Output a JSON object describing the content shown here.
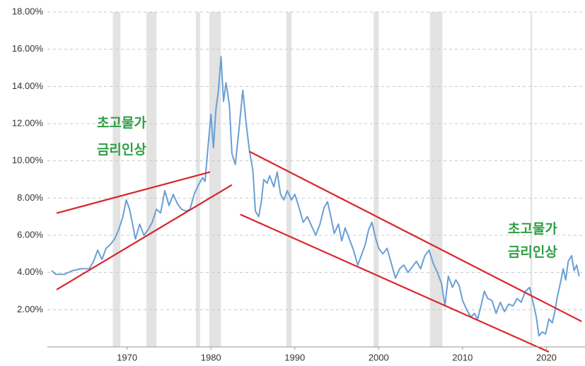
{
  "chart_data": {
    "type": "line",
    "xlim": [
      1960.5,
      2024.6
    ],
    "xticks": [
      1970,
      1980,
      1990,
      2000,
      2010,
      2020
    ],
    "ylim": [
      0,
      18
    ],
    "yticks": [
      {
        "value": 0,
        "label": ""
      },
      {
        "value": 2,
        "label": "2.00%"
      },
      {
        "value": 4,
        "label": "4.00%"
      },
      {
        "value": 6,
        "label": "6.00%"
      },
      {
        "value": 8,
        "label": "8.00%"
      },
      {
        "value": 10,
        "label": "10.00%"
      },
      {
        "value": 12,
        "label": "12.00%"
      },
      {
        "value": 14,
        "label": "14.00%"
      },
      {
        "value": 16,
        "label": "16.00%"
      },
      {
        "value": 18,
        "label": "18.00%"
      }
    ],
    "grid": true,
    "shaded_ranges": [
      [
        1968.3,
        1969.2
      ],
      [
        1972.3,
        1973.5
      ],
      [
        1978.2,
        1978.7
      ],
      [
        1979.8,
        1981.2
      ],
      [
        1989.0,
        1989.6
      ],
      [
        1999.4,
        2000.0
      ],
      [
        2006.1,
        2007.6
      ],
      [
        2018.1,
        2018.3
      ]
    ],
    "shade_color": "#e3e3e3",
    "x": [
      1961.0,
      1961.5,
      1962.5,
      1963.5,
      1964.5,
      1965.5,
      1966,
      1966.5,
      1967,
      1967.5,
      1968,
      1968.5,
      1969,
      1969.5,
      1969.9,
      1970.3,
      1970.7,
      1971,
      1971.5,
      1972,
      1972.5,
      1973,
      1973.5,
      1974,
      1974.5,
      1975,
      1975.5,
      1976,
      1976.5,
      1977,
      1977.5,
      1978,
      1978.5,
      1979,
      1979.3,
      1979.6,
      1980,
      1980.3,
      1980.6,
      1980.9,
      1981.2,
      1981.5,
      1981.8,
      1982.2,
      1982.5,
      1982.9,
      1983.3,
      1983.8,
      1984.2,
      1984.6,
      1985,
      1985.3,
      1985.7,
      1986,
      1986.3,
      1986.7,
      1987,
      1987.5,
      1987.9,
      1988.3,
      1988.7,
      1989.1,
      1989.6,
      1990,
      1990.5,
      1991,
      1991.5,
      1992,
      1992.5,
      1993,
      1993.5,
      1993.9,
      1994.3,
      1994.7,
      1995.2,
      1995.6,
      1996,
      1996.5,
      1997,
      1997.5,
      1998,
      1998.4,
      1998.8,
      1999.2,
      1999.6,
      2000,
      2000.5,
      2001,
      2001.5,
      2002,
      2002.5,
      2003,
      2003.5,
      2004,
      2004.5,
      2005,
      2005.5,
      2006,
      2006.5,
      2007,
      2007.5,
      2007.9,
      2008.3,
      2008.8,
      2009.2,
      2009.6,
      2010,
      2010.5,
      2011,
      2011.4,
      2011.8,
      2012.2,
      2012.6,
      2013,
      2013.5,
      2014,
      2014.5,
      2015,
      2015.5,
      2016,
      2016.5,
      2017,
      2017.5,
      2018,
      2018.4,
      2018.8,
      2019.1,
      2019.5,
      2019.9,
      2020.3,
      2020.7,
      2021,
      2021.3,
      2021.7,
      2022,
      2022.3,
      2022.6,
      2023,
      2023.3,
      2023.6,
      2023.9
    ],
    "series": [
      {
        "color": "#6a9fd6",
        "values": [
          4.1,
          3.9,
          3.9,
          4.1,
          4.2,
          4.2,
          4.6,
          5.2,
          4.7,
          5.3,
          5.5,
          5.8,
          6.3,
          7.0,
          7.9,
          7.4,
          6.5,
          5.8,
          6.6,
          6.0,
          6.3,
          6.7,
          7.4,
          7.2,
          8.4,
          7.6,
          8.2,
          7.7,
          7.4,
          7.3,
          7.4,
          8.2,
          8.7,
          9.1,
          8.9,
          10.5,
          12.5,
          10.7,
          12.8,
          13.8,
          15.6,
          13.2,
          14.2,
          13.0,
          10.4,
          9.8,
          11.5,
          13.8,
          12.0,
          10.5,
          9.5,
          7.3,
          7.0,
          7.8,
          9.0,
          8.8,
          9.2,
          8.6,
          9.4,
          8.2,
          7.9,
          8.4,
          7.9,
          8.2,
          7.5,
          6.7,
          7.0,
          6.5,
          6.0,
          6.6,
          7.5,
          7.8,
          7.0,
          6.1,
          6.6,
          5.7,
          6.4,
          5.8,
          5.2,
          4.4,
          5.0,
          5.5,
          6.3,
          6.7,
          5.9,
          5.3,
          5.0,
          5.3,
          4.5,
          3.7,
          4.2,
          4.4,
          4.0,
          4.3,
          4.6,
          4.2,
          4.9,
          5.2,
          4.5,
          4.0,
          3.4,
          2.2,
          3.8,
          3.2,
          3.6,
          3.3,
          2.5,
          2.0,
          1.6,
          1.8,
          1.5,
          2.2,
          3.0,
          2.6,
          2.5,
          1.8,
          2.4,
          1.9,
          2.3,
          2.2,
          2.6,
          2.4,
          3.0,
          3.2,
          2.4,
          1.6,
          0.6,
          0.8,
          0.7,
          1.5,
          1.3,
          1.9,
          2.7,
          3.5,
          4.2,
          3.6,
          4.6,
          4.9,
          4.1,
          4.4,
          3.8
        ]
      }
    ],
    "trend_lines": {
      "color": "#d9262c",
      "lines": [
        [
          [
            1961.6,
            7.19
          ],
          [
            1979.9,
            9.4
          ]
        ],
        [
          [
            1961.6,
            3.08
          ],
          [
            1982.5,
            8.71
          ]
        ],
        [
          [
            1984.6,
            10.5
          ],
          [
            2024.2,
            1.37
          ]
        ],
        [
          [
            1983.5,
            7.12
          ],
          [
            2020.3,
            -0.27
          ]
        ]
      ]
    },
    "annotations": [
      {
        "lines": [
          "초고물가",
          "금리인상"
        ],
        "x": 1966.4,
        "y": [
          12.0,
          10.55
        ]
      },
      {
        "lines": [
          "초고물가",
          "금리인상"
        ],
        "x": 2015.4,
        "y": [
          6.3,
          5.05
        ]
      }
    ]
  }
}
